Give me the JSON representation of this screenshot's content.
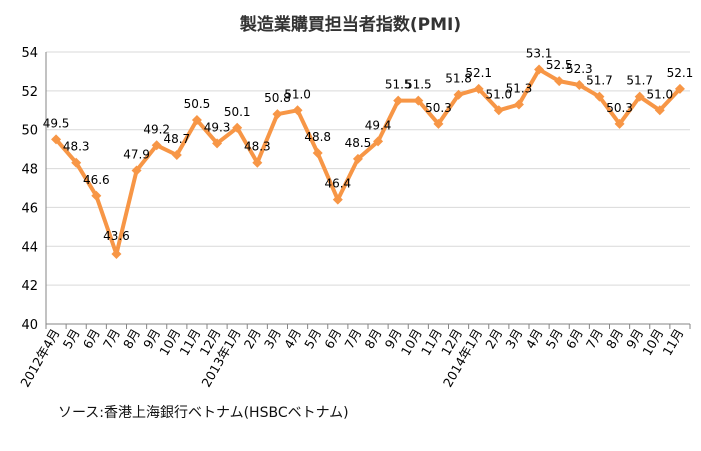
{
  "chart_data": {
    "type": "line",
    "title": "製造業購買担当者指数(PMI)",
    "x": [
      "2012年4月",
      "5月",
      "6月",
      "7月",
      "8月",
      "9月",
      "10月",
      "11月",
      "12月",
      "2013年1月",
      "2月",
      "3月",
      "4月",
      "5月",
      "6月",
      "7月",
      "8月",
      "9月",
      "10月",
      "11月",
      "12月",
      "2014年1月",
      "2月",
      "3月",
      "4月",
      "5月",
      "6月",
      "7月",
      "8月",
      "9月",
      "10月",
      "11月"
    ],
    "series": [
      {
        "values": [
          49.5,
          48.3,
          46.6,
          43.6,
          47.9,
          49.2,
          48.7,
          50.5,
          49.3,
          50.1,
          48.3,
          50.8,
          51.0,
          48.8,
          46.4,
          48.5,
          49.4,
          51.5,
          51.5,
          50.3,
          51.8,
          52.1,
          51.0,
          51.3,
          53.1,
          52.5,
          52.3,
          51.7,
          50.3,
          51.7,
          51.0,
          52.1
        ],
        "labels": [
          "49.5",
          "48.3",
          "46.6",
          "43.6",
          "47.9",
          "49.2",
          "48.7",
          "50.5",
          "49.3",
          "50.1",
          "48.3",
          "50.8",
          "51.0",
          "48.8",
          "46.4",
          "48.5",
          "49.4",
          "51.5",
          "51.5",
          "50.3",
          "51.8",
          "52.1",
          "51.0",
          "51.3",
          "53.1",
          "52.5",
          "52.3",
          "51.7",
          "50.3",
          "51.7",
          "51.0",
          "52.1"
        ]
      }
    ],
    "ylim": [
      40,
      54
    ],
    "yticks": [
      "40",
      "42",
      "44",
      "46",
      "48",
      "50",
      "52",
      "54"
    ],
    "grid": true,
    "legend": "none",
    "colors": {
      "line": "#f79646",
      "grid": "#d9d9d9",
      "axis": "#868686",
      "text": "#000000"
    }
  },
  "source": "ソース:香港上海銀行ベトナム(HSBCベトナム)"
}
